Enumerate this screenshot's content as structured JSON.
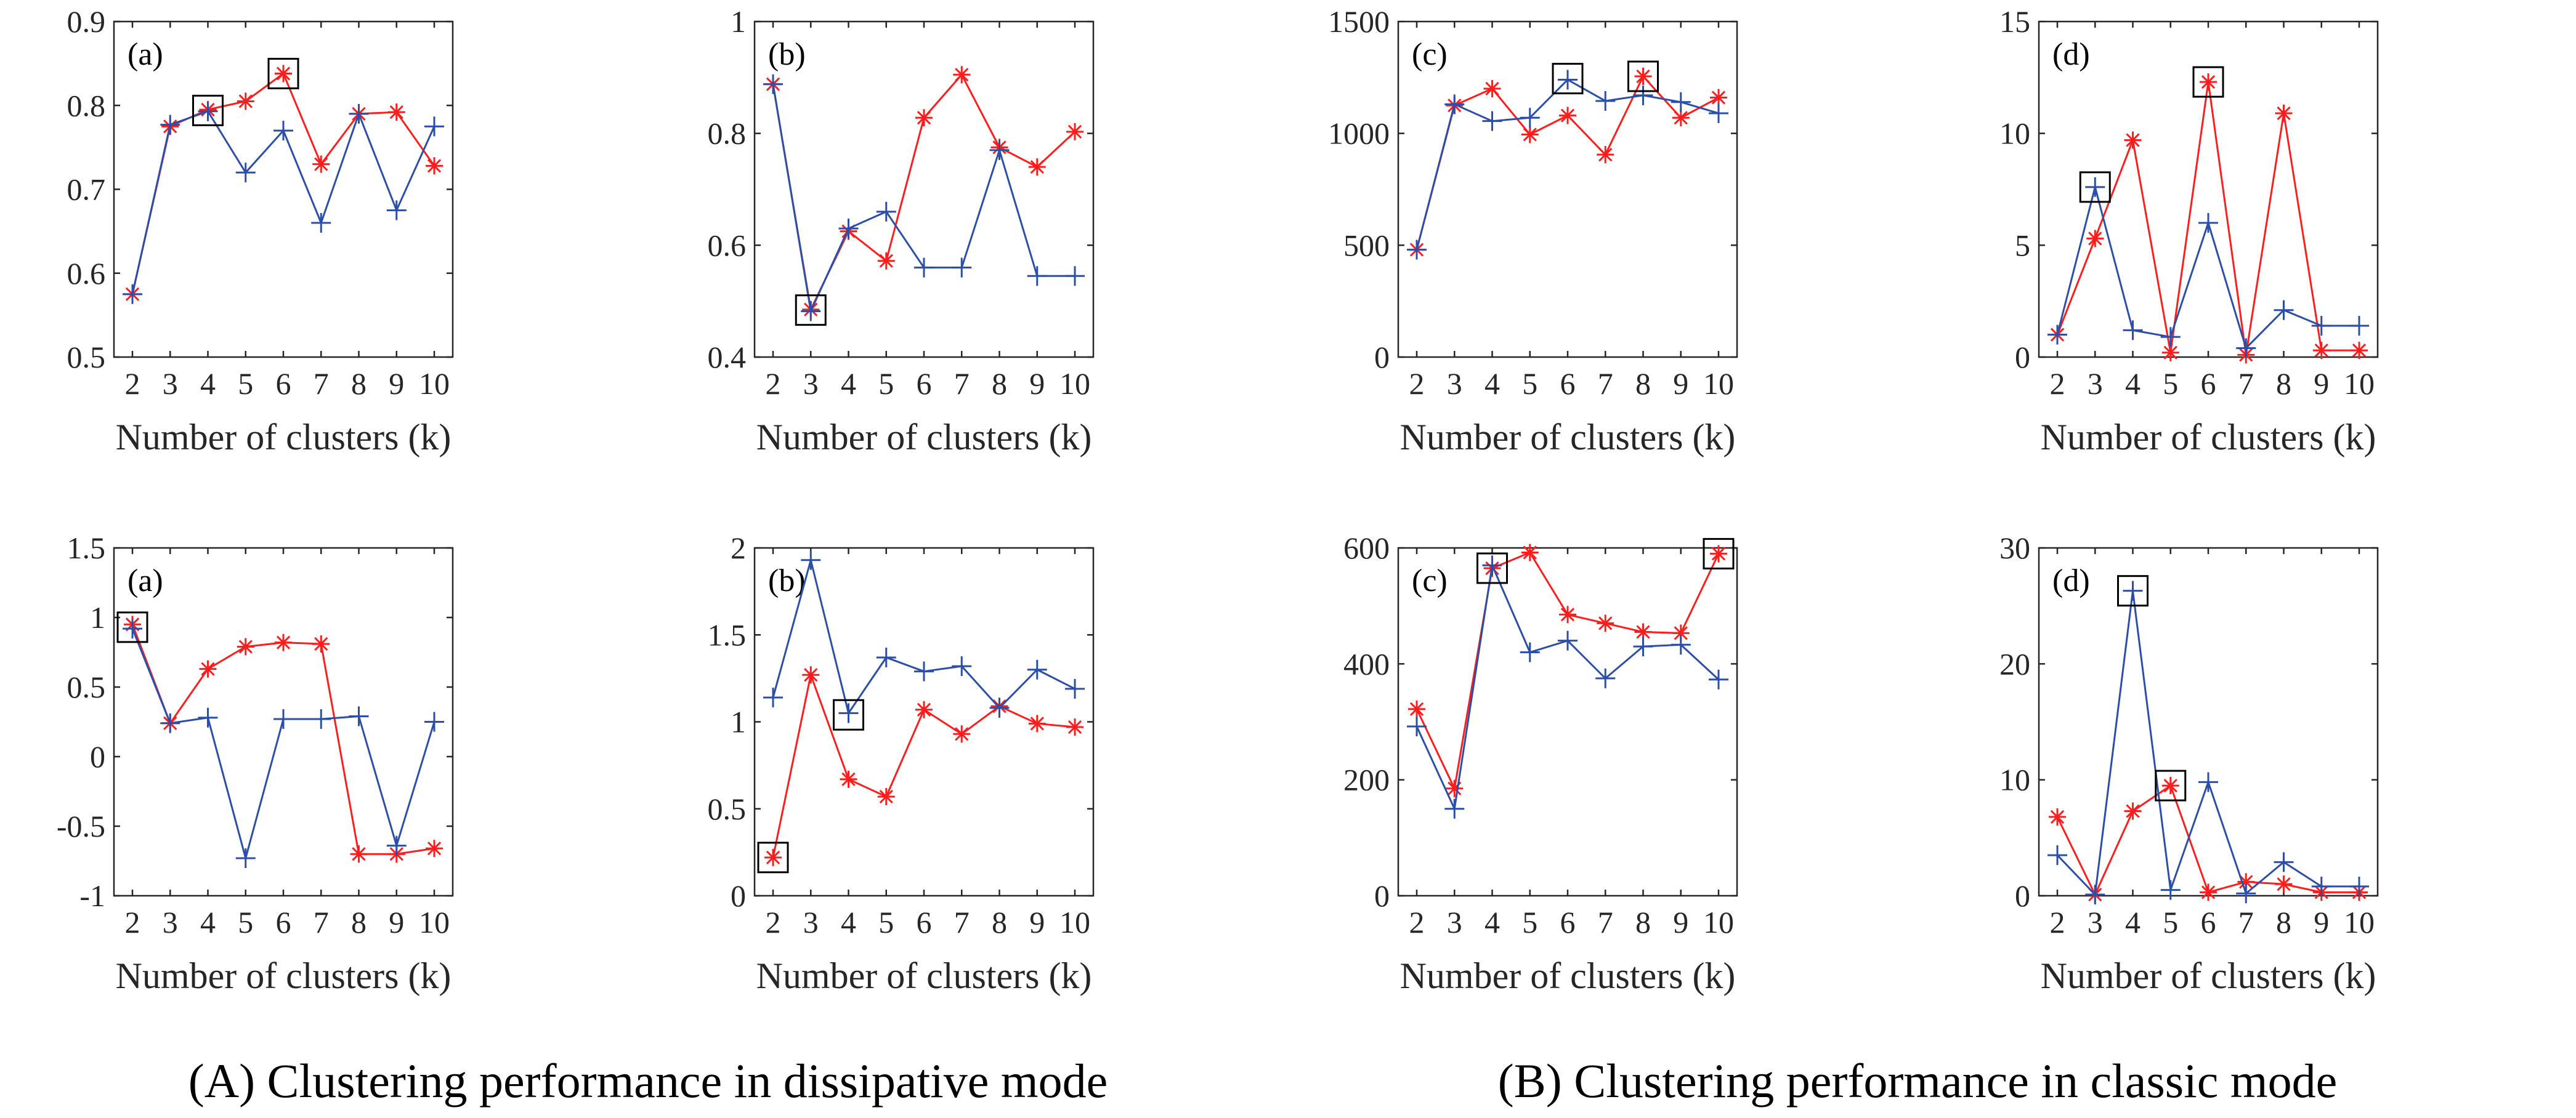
{
  "captions": {
    "left": "(A) Clustering performance in dissipative mode",
    "right": "(B) Clustering performance in classic mode"
  },
  "colors": {
    "red": "#ff1c1c",
    "blue": "#2b4fa8",
    "axis": "#262626",
    "box": "#000000"
  },
  "chart_data": [
    {
      "group": "A",
      "label": "(a)",
      "type": "line",
      "xlabel": "Number of clusters (k)",
      "ylabel": "",
      "x": [
        2,
        3,
        4,
        5,
        6,
        7,
        8,
        9,
        10
      ],
      "ylim": [
        0.5,
        0.9
      ],
      "yticks": [
        0.5,
        0.6,
        0.7,
        0.8,
        0.9
      ],
      "ytick_labels": [
        "0.5",
        "0.6",
        "0.7",
        "0.8",
        "0.9"
      ],
      "series": [
        {
          "name": "red-asterisk",
          "color": "red",
          "marker": "asterisk",
          "values": [
            0.575,
            0.775,
            0.795,
            0.805,
            0.838,
            0.73,
            0.79,
            0.792,
            0.728
          ]
        },
        {
          "name": "blue-plus",
          "color": "blue",
          "marker": "plus",
          "values": [
            0.575,
            0.777,
            0.793,
            0.72,
            0.77,
            0.66,
            0.79,
            0.675,
            0.775
          ]
        }
      ],
      "highlights": [
        {
          "x": 4,
          "y": 0.794
        },
        {
          "x": 6,
          "y": 0.838
        }
      ]
    },
    {
      "group": "A",
      "label": "(b)",
      "type": "line",
      "xlabel": "Number of clusters (k)",
      "ylabel": "",
      "x": [
        2,
        3,
        4,
        5,
        6,
        7,
        8,
        9,
        10
      ],
      "ylim": [
        0.4,
        1.0
      ],
      "yticks": [
        0.4,
        0.6,
        0.8,
        1.0
      ],
      "ytick_labels": [
        "0.4",
        "0.6",
        "0.8",
        "1"
      ],
      "series": [
        {
          "name": "red-asterisk",
          "color": "red",
          "marker": "asterisk",
          "values": [
            0.888,
            0.485,
            0.625,
            0.572,
            0.828,
            0.905,
            0.775,
            0.74,
            0.803
          ]
        },
        {
          "name": "blue-plus",
          "color": "blue",
          "marker": "plus",
          "values": [
            0.888,
            0.482,
            0.63,
            0.66,
            0.56,
            0.56,
            0.77,
            0.545,
            0.545
          ]
        }
      ],
      "highlights": [
        {
          "x": 3,
          "y": 0.484
        }
      ]
    },
    {
      "group": "A",
      "label": "(c)",
      "type": "line",
      "xlabel": "Number of clusters (k)",
      "ylabel": "",
      "x": [
        2,
        3,
        4,
        5,
        6,
        7,
        8,
        9,
        10
      ],
      "ylim": [
        0,
        1500
      ],
      "yticks": [
        0,
        500,
        1000,
        1500
      ],
      "ytick_labels": [
        "0",
        "500",
        "1000",
        "1500"
      ],
      "series": [
        {
          "name": "red-asterisk",
          "color": "red",
          "marker": "asterisk",
          "values": [
            480,
            1125,
            1200,
            995,
            1080,
            905,
            1255,
            1070,
            1160
          ]
        },
        {
          "name": "blue-plus",
          "color": "blue",
          "marker": "plus",
          "values": [
            480,
            1130,
            1055,
            1070,
            1240,
            1145,
            1170,
            1140,
            1090
          ]
        }
      ],
      "highlights": [
        {
          "x": 6,
          "y": 1245
        },
        {
          "x": 8,
          "y": 1255
        }
      ]
    },
    {
      "group": "A",
      "label": "(d)",
      "type": "line",
      "xlabel": "Number of clusters (k)",
      "ylabel": "",
      "x": [
        2,
        3,
        4,
        5,
        6,
        7,
        8,
        9,
        10
      ],
      "ylim": [
        0,
        15
      ],
      "yticks": [
        0,
        5,
        10,
        15
      ],
      "ytick_labels": [
        "0",
        "5",
        "10",
        "15"
      ],
      "series": [
        {
          "name": "red-asterisk",
          "color": "red",
          "marker": "asterisk",
          "values": [
            1.0,
            5.3,
            9.7,
            0.2,
            12.3,
            0.1,
            10.9,
            0.3,
            0.3
          ]
        },
        {
          "name": "blue-plus",
          "color": "blue",
          "marker": "plus",
          "values": [
            1.0,
            7.6,
            1.2,
            0.9,
            6.0,
            0.4,
            2.1,
            1.4,
            1.4
          ]
        }
      ],
      "highlights": [
        {
          "x": 3,
          "y": 7.6
        },
        {
          "x": 6,
          "y": 12.3
        }
      ]
    },
    {
      "group": "B",
      "label": "(a)",
      "type": "line",
      "xlabel": "Number of clusters (k)",
      "ylabel": "",
      "x": [
        2,
        3,
        4,
        5,
        6,
        7,
        8,
        9,
        10
      ],
      "ylim": [
        -1,
        1.5
      ],
      "yticks": [
        -1,
        -0.5,
        0,
        0.5,
        1,
        1.5
      ],
      "ytick_labels": [
        "-1",
        "-0.5",
        "0",
        "0.5",
        "1",
        "1.5"
      ],
      "series": [
        {
          "name": "red-asterisk",
          "color": "red",
          "marker": "asterisk",
          "values": [
            0.95,
            0.24,
            0.63,
            0.79,
            0.82,
            0.81,
            -0.7,
            -0.7,
            -0.66
          ]
        },
        {
          "name": "blue-plus",
          "color": "blue",
          "marker": "plus",
          "values": [
            0.92,
            0.24,
            0.28,
            -0.73,
            0.27,
            0.27,
            0.29,
            -0.64,
            0.25
          ]
        }
      ],
      "highlights": [
        {
          "x": 2,
          "y": 0.93
        }
      ]
    },
    {
      "group": "B",
      "label": "(b)",
      "type": "line",
      "xlabel": "Number of clusters (k)",
      "ylabel": "",
      "x": [
        2,
        3,
        4,
        5,
        6,
        7,
        8,
        9,
        10
      ],
      "ylim": [
        0,
        2
      ],
      "yticks": [
        0,
        0.5,
        1,
        1.5,
        2
      ],
      "ytick_labels": [
        "0",
        "0.5",
        "1",
        "1.5",
        "2"
      ],
      "series": [
        {
          "name": "red-asterisk",
          "color": "red",
          "marker": "asterisk",
          "values": [
            0.22,
            1.27,
            0.67,
            0.57,
            1.07,
            0.93,
            1.09,
            0.99,
            0.97
          ]
        },
        {
          "name": "blue-plus",
          "color": "blue",
          "marker": "plus",
          "values": [
            1.14,
            1.93,
            1.05,
            1.37,
            1.29,
            1.32,
            1.08,
            1.3,
            1.19
          ]
        }
      ],
      "highlights": [
        {
          "x": 2,
          "y": 0.22
        },
        {
          "x": 4,
          "y": 1.04
        }
      ]
    },
    {
      "group": "B",
      "label": "(c)",
      "type": "line",
      "xlabel": "Number of clusters (k)",
      "ylabel": "",
      "x": [
        2,
        3,
        4,
        5,
        6,
        7,
        8,
        9,
        10
      ],
      "ylim": [
        0,
        600
      ],
      "yticks": [
        0,
        200,
        400,
        600
      ],
      "ytick_labels": [
        "0",
        "200",
        "400",
        "600"
      ],
      "series": [
        {
          "name": "red-asterisk",
          "color": "red",
          "marker": "asterisk",
          "values": [
            322,
            185,
            565,
            592,
            485,
            470,
            455,
            453,
            590
          ]
        },
        {
          "name": "blue-plus",
          "color": "blue",
          "marker": "plus",
          "values": [
            292,
            150,
            570,
            420,
            440,
            375,
            430,
            433,
            373
          ]
        }
      ],
      "highlights": [
        {
          "x": 4,
          "y": 565
        },
        {
          "x": 10,
          "y": 590
        }
      ]
    },
    {
      "group": "B",
      "label": "(d)",
      "type": "line",
      "xlabel": "Number of clusters (k)",
      "ylabel": "",
      "x": [
        2,
        3,
        4,
        5,
        6,
        7,
        8,
        9,
        10
      ],
      "ylim": [
        0,
        30
      ],
      "yticks": [
        0,
        10,
        20,
        30
      ],
      "ytick_labels": [
        "0",
        "10",
        "20",
        "30"
      ],
      "series": [
        {
          "name": "red-asterisk",
          "color": "red",
          "marker": "asterisk",
          "values": [
            6.8,
            0.1,
            7.3,
            9.5,
            0.3,
            1.2,
            1.0,
            0.3,
            0.3
          ]
        },
        {
          "name": "blue-plus",
          "color": "blue",
          "marker": "plus",
          "values": [
            3.5,
            0.1,
            26.3,
            0.5,
            9.8,
            0.2,
            2.9,
            0.8,
            0.8
          ]
        }
      ],
      "highlights": [
        {
          "x": 4,
          "y": 26.3
        },
        {
          "x": 5,
          "y": 9.5
        }
      ]
    }
  ]
}
